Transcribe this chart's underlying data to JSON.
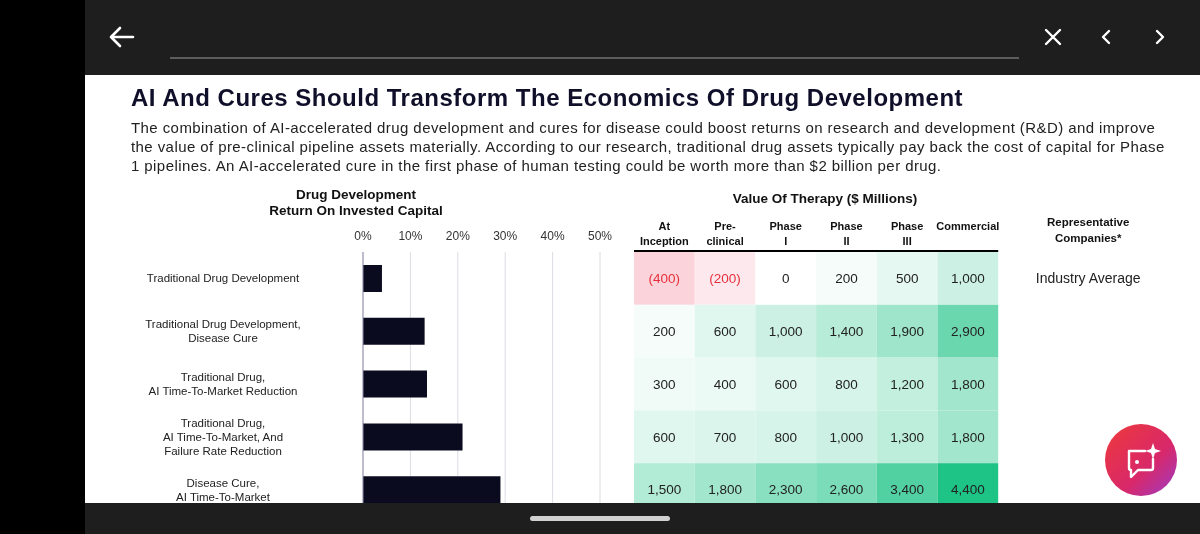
{
  "chart_data": [
    {
      "type": "other",
      "title": "AI And Cures Should Transform The Economics Of Drug Development",
      "subtitle": "The combination of AI-accelerated drug development and cures for disease could boost returns on research and development (R&D) and improve the value of pre-clinical pipeline assets materially. According to our research, traditional drug assets typically pay back the cost of capital for Phase 1 pipelines. An AI-accelerated cure in the first phase of human testing could be worth more than $2 billion per drug."
    },
    {
      "type": "bar",
      "orientation": "horizontal",
      "title": "Drug Development\nReturn On Invested Capital",
      "categories": [
        "Traditional Drug Development",
        "Traditional Drug Development,\nDisease Cure",
        "Traditional Drug,\nAI Time-To-Market Reduction",
        "Traditional Drug,\nAI Time-To-Market, And\nFailure Rate Reduction",
        "Disease Cure,\nAI Time-To-Market"
      ],
      "values": [
        4,
        13,
        13.5,
        21,
        29
      ],
      "color": "#0b0b20",
      "xlim": [
        0,
        50
      ],
      "xticks": [
        {
          "value": 0,
          "label": "0%"
        },
        {
          "value": 10,
          "label": "10%"
        },
        {
          "value": 20,
          "label": "20%"
        },
        {
          "value": 30,
          "label": "30%"
        },
        {
          "value": 40,
          "label": "40%"
        },
        {
          "value": 50,
          "label": "50%"
        }
      ],
      "grid": "x"
    },
    {
      "type": "heatmap",
      "title": "Value Of Therapy ($ Millions)",
      "categories": [
        "At\nInception",
        "Pre-\nclinical",
        "Phase\nI",
        "Phase\nII",
        "Phase\nIII",
        "Commercial"
      ],
      "y_categories": [
        "Traditional Drug Development",
        "Traditional Drug Development,\nDisease Cure",
        "Traditional Drug,\nAI Time-To-Market Reduction",
        "Traditional Drug,\nAI Time-To-Market, And\nFailure Rate Reduction",
        "Disease Cure,\nAI Time-To-Market"
      ],
      "tick_labels": "x",
      "y2label": "Representative\nCompanies*",
      "y2_categories": [
        "Industry Average",
        null,
        null,
        null,
        null
      ],
      "cells": [
        [
          -400,
          -200,
          0,
          200,
          500,
          1000
        ],
        [
          200,
          600,
          1000,
          1400,
          1900,
          2900
        ],
        [
          300,
          400,
          600,
          800,
          1200,
          1800
        ],
        [
          600,
          700,
          800,
          1000,
          1300,
          1800
        ],
        [
          1500,
          1800,
          2300,
          2600,
          3400,
          4400
        ]
      ],
      "cell_labels": [
        [
          "(400)",
          "(200)",
          "0",
          "200",
          "500",
          "1,000"
        ],
        [
          "200",
          "600",
          "1,000",
          "1,400",
          "1,900",
          "2,900"
        ],
        [
          "300",
          "400",
          "600",
          "800",
          "1,200",
          "1,800"
        ],
        [
          "600",
          "700",
          "800",
          "1,000",
          "1,300",
          "1,800"
        ],
        [
          "1,500",
          "1,800",
          "2,300",
          "2,600",
          "3,400",
          "4,400"
        ]
      ]
    }
  ]
}
